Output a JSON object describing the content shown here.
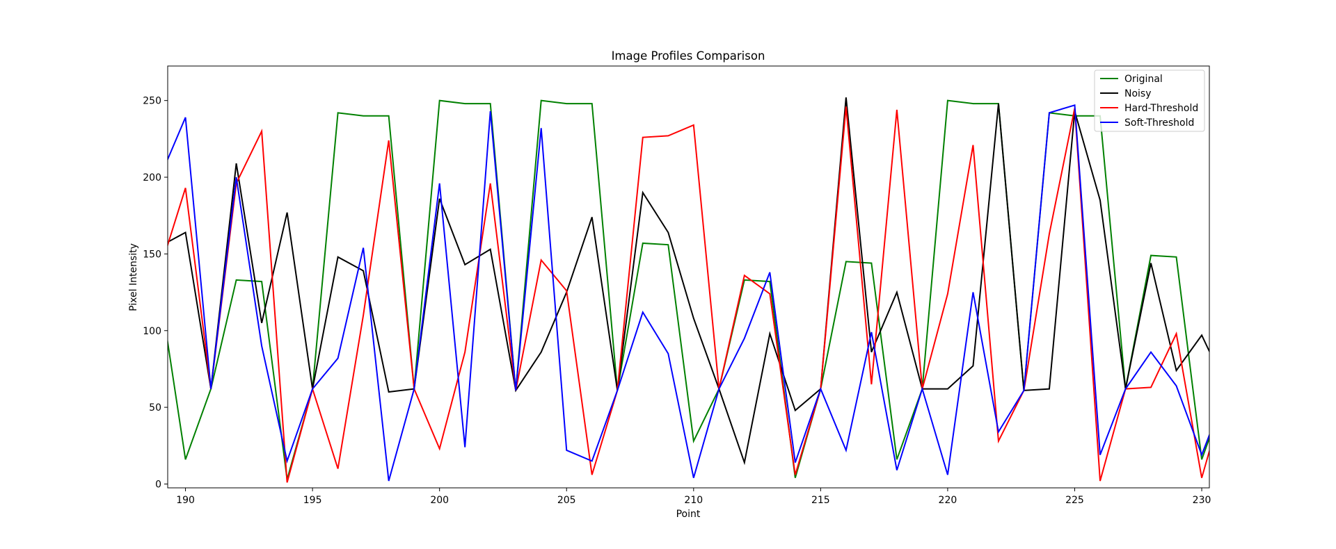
{
  "chart_data": {
    "type": "line",
    "title": "Image Profiles Comparison",
    "xlabel": "Point",
    "ylabel": "Pixel Intensity",
    "xlim": [
      189.3,
      230.3
    ],
    "ylim": [
      -2.5,
      272.5
    ],
    "xticks": [
      190,
      195,
      200,
      205,
      210,
      215,
      220,
      225,
      230
    ],
    "yticks": [
      0,
      50,
      100,
      150,
      200,
      250
    ],
    "grid": false,
    "legend": "top-right",
    "x": [
      189,
      190,
      191,
      192,
      193,
      194,
      195,
      196,
      197,
      198,
      199,
      200,
      201,
      202,
      203,
      204,
      205,
      206,
      207,
      208,
      209,
      210,
      211,
      212,
      213,
      214,
      215,
      216,
      217,
      218,
      219,
      220,
      221,
      222,
      223,
      224,
      225,
      226,
      227,
      228,
      229,
      230,
      231
    ],
    "series": [
      {
        "name": "Original",
        "color": "#008000",
        "values": [
          125,
          16,
          62,
          133,
          132,
          3,
          62,
          242,
          240,
          240,
          62,
          250,
          248,
          248,
          61,
          250,
          248,
          248,
          61,
          157,
          156,
          28,
          62,
          133,
          132,
          4,
          62,
          145,
          144,
          16,
          62,
          250,
          248,
          248,
          61,
          242,
          240,
          240,
          62,
          149,
          148,
          16,
          62
        ]
      },
      {
        "name": "Noisy",
        "color": "#000000",
        "values": [
          155,
          164,
          62,
          209,
          105,
          177,
          62,
          148,
          139,
          60,
          62,
          186,
          143,
          153,
          61,
          86,
          125,
          174,
          61,
          190,
          164,
          108,
          62,
          14,
          98,
          48,
          62,
          252,
          86,
          125,
          62,
          62,
          77,
          248,
          61,
          62,
          243,
          185,
          62,
          144,
          74,
          97,
          62
        ]
      },
      {
        "name": "Hard-Threshold",
        "color": "#ff0000",
        "values": [
          140,
          193,
          62,
          196,
          230,
          1,
          62,
          10,
          110,
          224,
          62,
          23,
          86,
          196,
          61,
          146,
          126,
          6,
          61,
          226,
          227,
          234,
          62,
          136,
          124,
          6,
          62,
          246,
          65,
          244,
          62,
          124,
          221,
          28,
          61,
          163,
          245,
          2,
          62,
          63,
          98,
          4,
          62
        ]
      },
      {
        "name": "Soft-Threshold",
        "color": "#0000ff",
        "values": [
          200,
          239,
          62,
          200,
          90,
          15,
          62,
          82,
          154,
          2,
          62,
          196,
          24,
          243,
          61,
          232,
          22,
          15,
          61,
          112,
          85,
          4,
          62,
          95,
          138,
          14,
          62,
          22,
          99,
          9,
          62,
          6,
          125,
          34,
          61,
          242,
          247,
          19,
          62,
          86,
          64,
          19,
          62
        ]
      }
    ]
  }
}
